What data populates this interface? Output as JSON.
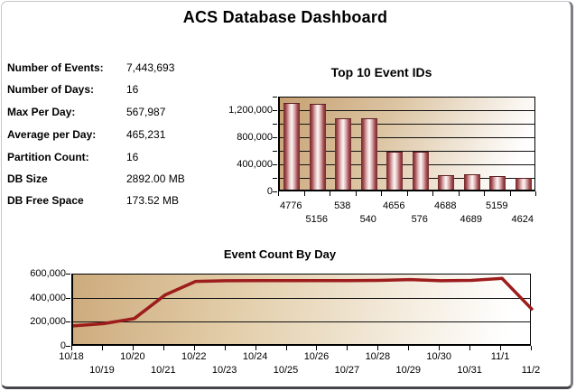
{
  "title": "ACS Database Dashboard",
  "stats": {
    "rows": [
      {
        "label": "Number of Events:",
        "value": "7,443,693"
      },
      {
        "label": "Number of Days:",
        "value": "16"
      },
      {
        "label": "Max Per Day:",
        "value": "567,987"
      },
      {
        "label": "Average per Day:",
        "value": "465,231"
      },
      {
        "label": "Partition Count:",
        "value": "16"
      },
      {
        "label": "DB Size",
        "value": "2892.00 MB"
      },
      {
        "label": "DB Free Space",
        "value": "173.52 MB"
      }
    ]
  },
  "colors": {
    "bar_dark": "#73272b",
    "bar_highlight": "#fdf7f7",
    "line_stroke": "#9d1c1c",
    "plot_tan": "#cdab7d",
    "gridline": "#111111"
  },
  "chart_data": [
    {
      "type": "bar",
      "title": "Top 10 Event IDs",
      "categories": [
        "4776",
        "5156",
        "538",
        "540",
        "4656",
        "576",
        "4688",
        "4689",
        "5159",
        "4624"
      ],
      "values": [
        1265000,
        1248000,
        1035000,
        1035000,
        548000,
        543000,
        200000,
        210000,
        190000,
        155000
      ],
      "xlabel": "",
      "ylabel": "",
      "ylim": [
        0,
        1400000
      ],
      "grid_step": 200000,
      "grid": true,
      "legend_position": "none",
      "yticks": [
        {
          "v": 0,
          "label": "0"
        },
        {
          "v": 400000,
          "label": "400,000"
        },
        {
          "v": 800000,
          "label": "800,000"
        },
        {
          "v": 1200000,
          "label": "1,200,000"
        }
      ]
    },
    {
      "type": "line",
      "title": "Event Count By Day",
      "x": [
        "10/18",
        "10/19",
        "10/20",
        "10/21",
        "10/22",
        "10/23",
        "10/24",
        "10/25",
        "10/26",
        "10/27",
        "10/28",
        "10/29",
        "10/30",
        "10/31",
        "11/1",
        "11/2"
      ],
      "values": [
        173000,
        192000,
        235000,
        430000,
        543000,
        548000,
        550000,
        550000,
        550000,
        550000,
        551000,
        558000,
        548000,
        551000,
        567987,
        305000
      ],
      "xlabel": "",
      "ylabel": "",
      "ylim": [
        0,
        600000
      ],
      "grid_step": 200000,
      "grid": true,
      "legend_position": "none",
      "yticks": [
        {
          "v": 0,
          "label": "0"
        },
        {
          "v": 200000,
          "label": "200,000"
        },
        {
          "v": 400000,
          "label": "400,000"
        },
        {
          "v": 600000,
          "label": "600,000"
        }
      ]
    }
  ]
}
